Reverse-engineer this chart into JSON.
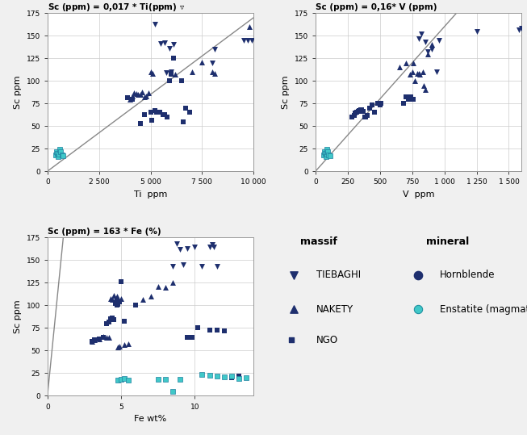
{
  "background_color": "#f0f0f0",
  "plot_bg_color": "#ffffff",
  "grid_color": "#cccccc",
  "navy": "#1e2f6e",
  "cyan": "#40c8c8",
  "title1": "Sc (ppm) = 0,017 * Ti(ppm)",
  "title2": "Sc (ppm) = 0,16* V (ppm)",
  "title3": "Sc (ppm) = 163 * Fe (%)",
  "xlabel1": "Ti  ppm",
  "xlabel2": "V  ppm",
  "xlabel3": "Fe wt%",
  "ylabel": "Sc ppm",
  "xlim1": [
    0,
    10000
  ],
  "xlim2": [
    0,
    1600
  ],
  "xlim3": [
    0,
    14
  ],
  "ylim": [
    0,
    175
  ],
  "xticks1": [
    0,
    2500,
    5000,
    7500,
    10000
  ],
  "xticks2": [
    0,
    250,
    500,
    750,
    1000,
    1250,
    1500
  ],
  "xticks3": [
    0,
    5,
    10
  ],
  "yticks": [
    0,
    25,
    50,
    75,
    100,
    125,
    150,
    175
  ],
  "reg_slope1": 0.017,
  "reg_slope2": 0.16,
  "reg_slope3": 163,
  "ti_tiebaghi": [
    5200,
    5500,
    5700,
    5750,
    5900,
    6000,
    6100,
    8000,
    8100,
    9500,
    9700,
    9900
  ],
  "sc_tiebaghi_ti": [
    163,
    141,
    142,
    109,
    136,
    110,
    140,
    120,
    135,
    145,
    145,
    145
  ],
  "ti_nakety": [
    4000,
    4100,
    4200,
    4300,
    4400,
    4500,
    4600,
    4700,
    4800,
    4900,
    5000,
    5100,
    6000,
    6200,
    7000,
    7500,
    8000,
    8100,
    9800
  ],
  "sc_nakety_ti": [
    80,
    83,
    87,
    86,
    85,
    85,
    88,
    82,
    83,
    87,
    110,
    108,
    108,
    107,
    110,
    121,
    110,
    108,
    160
  ],
  "ti_ngo": [
    3900,
    4100,
    4500,
    4700,
    5000,
    5050,
    5200,
    5300,
    5450,
    5600,
    5700,
    5800,
    5900,
    6000,
    6100,
    6500,
    6600,
    6700,
    6900
  ],
  "sc_ngo_ti": [
    81,
    80,
    53,
    63,
    65,
    56,
    67,
    65,
    65,
    63,
    63,
    60,
    100,
    108,
    125,
    100,
    55,
    70,
    65
  ],
  "ti_enstatite": [
    400,
    430,
    480,
    520,
    560,
    610,
    650,
    700,
    750
  ],
  "sc_enstatite_ti": [
    18,
    22,
    20,
    16,
    19,
    24,
    22,
    18,
    17
  ],
  "v_tiebaghi": [
    800,
    820,
    850,
    870,
    900,
    940,
    960,
    1250,
    1580,
    1600
  ],
  "sc_tiebaghi_v": [
    147,
    152,
    143,
    132,
    135,
    110,
    145,
    155,
    156,
    158
  ],
  "v_nakety": [
    650,
    700,
    730,
    750,
    760,
    770,
    790,
    800,
    810,
    830,
    840,
    850,
    870,
    900
  ],
  "sc_nakety_v": [
    115,
    120,
    107,
    110,
    120,
    100,
    108,
    108,
    107,
    110,
    95,
    90,
    130,
    140
  ],
  "v_ngo": [
    280,
    300,
    310,
    320,
    330,
    340,
    350,
    360,
    370,
    380,
    390,
    400,
    420,
    440,
    460,
    480,
    500,
    510,
    680,
    700,
    720,
    740,
    760
  ],
  "sc_ngo_v": [
    60,
    62,
    64,
    65,
    66,
    67,
    68,
    68,
    66,
    60,
    60,
    62,
    70,
    73,
    65,
    75,
    73,
    75,
    75,
    82,
    80,
    82,
    80
  ],
  "v_enstatite": [
    60,
    70,
    75,
    80,
    85,
    90,
    95,
    100,
    110
  ],
  "sc_enstatite_v": [
    18,
    22,
    20,
    16,
    19,
    24,
    22,
    18,
    17
  ],
  "fe_tiebaghi": [
    8.5,
    8.8,
    9.0,
    9.2,
    9.5,
    10.0,
    10.5,
    11.0,
    11.2,
    11.3,
    11.5
  ],
  "sc_tiebaghi_fe": [
    143,
    168,
    162,
    145,
    163,
    165,
    143,
    165,
    167,
    165,
    143
  ],
  "fe_nakety": [
    3.0,
    3.2,
    3.5,
    3.8,
    4.0,
    4.2,
    4.3,
    4.4,
    4.5,
    4.6,
    4.7,
    4.8,
    4.9,
    5.0,
    5.2,
    5.5,
    6.5,
    7.0,
    7.5,
    8.0,
    8.5
  ],
  "sc_nakety_fe": [
    60,
    62,
    63,
    66,
    65,
    65,
    108,
    107,
    111,
    108,
    110,
    54,
    55,
    108,
    57,
    58,
    107,
    110,
    121,
    120,
    125
  ],
  "fe_ngo": [
    3.0,
    3.2,
    3.5,
    3.8,
    4.0,
    4.2,
    4.3,
    4.4,
    4.5,
    4.6,
    4.7,
    4.8,
    4.9,
    5.0,
    5.2,
    6.0,
    9.5,
    9.8,
    10.2,
    11.0,
    11.5,
    12.0,
    12.5,
    13.0
  ],
  "sc_ngo_fe": [
    60,
    62,
    63,
    65,
    80,
    82,
    85,
    86,
    84,
    102,
    100,
    101,
    104,
    126,
    83,
    100,
    65,
    65,
    75,
    73,
    73,
    72,
    20,
    22
  ],
  "fe_enstatite": [
    4.8,
    5.0,
    5.2,
    5.5,
    7.5,
    8.0,
    8.5,
    9.0,
    10.5,
    11.0,
    11.5,
    12.0,
    12.5,
    13.0,
    13.5
  ],
  "sc_enstatite_fe": [
    17,
    18,
    19,
    17,
    18,
    18,
    5,
    18,
    24,
    23,
    22,
    21,
    22,
    19,
    20
  ]
}
